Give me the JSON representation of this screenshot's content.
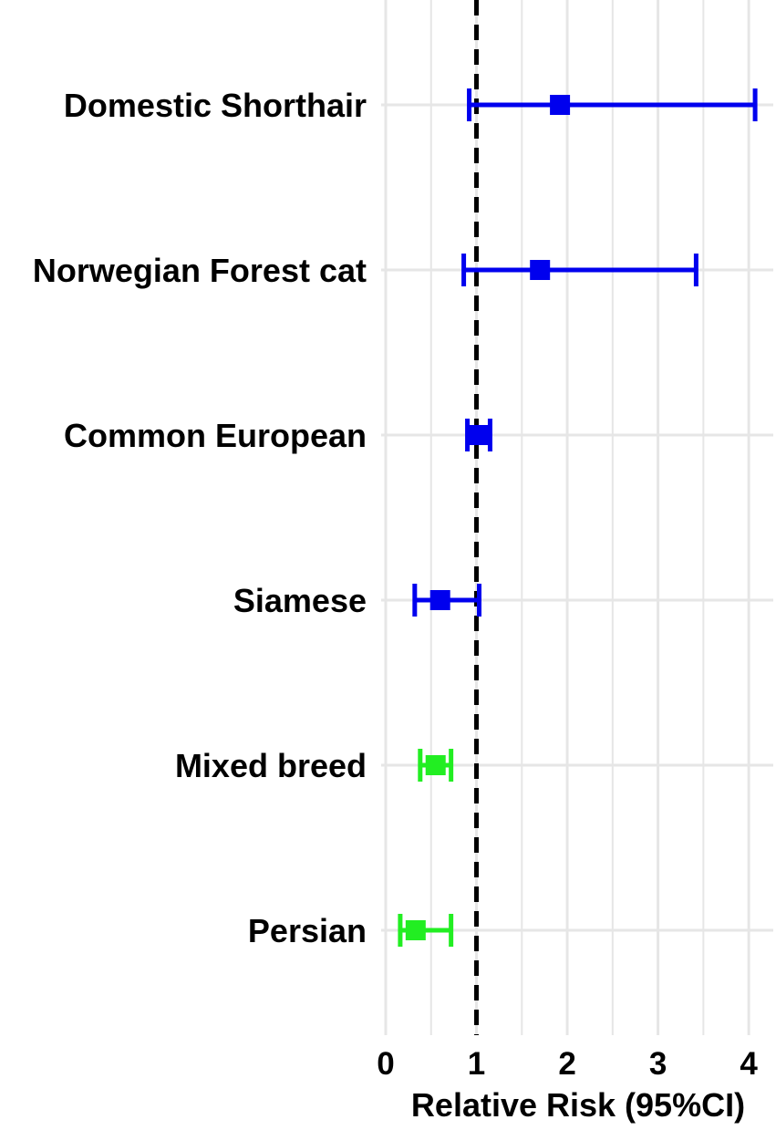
{
  "chart_data": {
    "type": "forest",
    "xlabel": "Relative Risk (95%CI)",
    "xlim": [
      -0.05,
      4.27
    ],
    "xticks": [
      0,
      1,
      2,
      3,
      4
    ],
    "x_minor_gridlines": [
      0.5,
      1.5,
      2.5,
      3.5
    ],
    "reference_line": 1,
    "grid": true,
    "rows": [
      {
        "label": "Domestic Shorthair",
        "estimate": 1.92,
        "lower": 0.92,
        "upper": 4.07,
        "color": "#0000ee"
      },
      {
        "label": "Norwegian Forest cat",
        "estimate": 1.7,
        "lower": 0.86,
        "upper": 3.42,
        "color": "#0000ee"
      },
      {
        "label": "Common European",
        "estimate": 1.03,
        "lower": 0.9,
        "upper": 1.15,
        "color": "#0000ee"
      },
      {
        "label": "Siamese",
        "estimate": 0.6,
        "lower": 0.32,
        "upper": 1.03,
        "color": "#0000ee"
      },
      {
        "label": "Mixed breed",
        "estimate": 0.55,
        "lower": 0.38,
        "upper": 0.72,
        "color": "#22ee22"
      },
      {
        "label": "Persian",
        "estimate": 0.33,
        "lower": 0.16,
        "upper": 0.72,
        "color": "#22ee22"
      }
    ]
  }
}
